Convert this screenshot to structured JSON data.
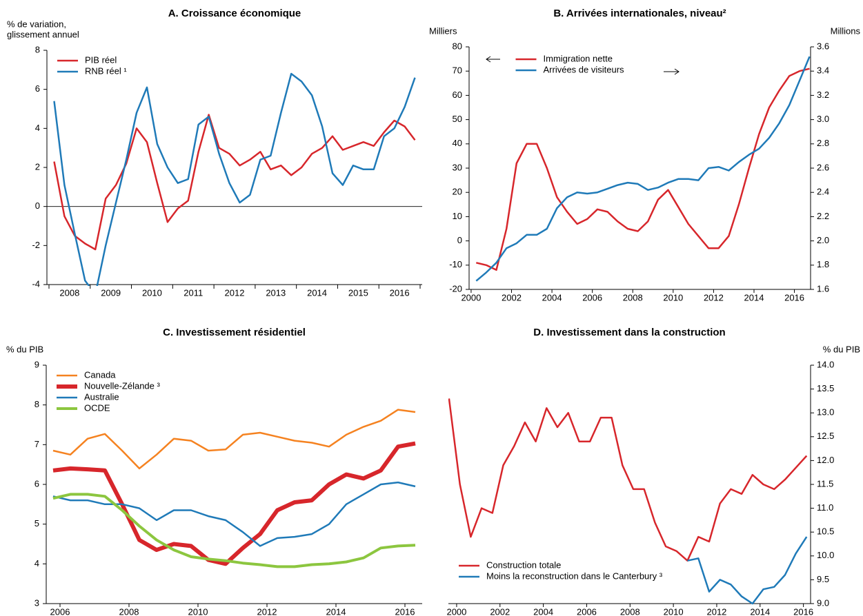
{
  "chart_data": [
    {
      "type": "line",
      "title": "A. Croissance économique",
      "y_label": [
        "% de variation,",
        "glissement annuel"
      ],
      "x": [
        2008.125,
        2008.375,
        2008.625,
        2008.875,
        2009.125,
        2009.375,
        2009.625,
        2009.875,
        2010.125,
        2010.375,
        2010.625,
        2010.875,
        2011.125,
        2011.375,
        2011.625,
        2011.875,
        2012.125,
        2012.375,
        2012.625,
        2012.875,
        2013.125,
        2013.375,
        2013.625,
        2013.875,
        2014.125,
        2014.375,
        2014.625,
        2014.875,
        2015.125,
        2015.375,
        2015.625,
        2015.875,
        2016.125,
        2016.375,
        2016.625,
        2016.875
      ],
      "xlim": [
        2007.95,
        2017.05
      ],
      "xticks": [
        {
          "value": 2008.5,
          "label": "2008"
        },
        {
          "value": 2009.5,
          "label": "2009"
        },
        {
          "value": 2010.5,
          "label": "2010"
        },
        {
          "value": 2011.5,
          "label": "2011"
        },
        {
          "value": 2012.5,
          "label": "2012"
        },
        {
          "value": 2013.5,
          "label": "2013"
        },
        {
          "value": 2014.5,
          "label": "2014"
        },
        {
          "value": 2015.5,
          "label": "2015"
        },
        {
          "value": 2016.5,
          "label": "2016"
        }
      ],
      "xtick_style": "between",
      "ylim": [
        -4,
        8
      ],
      "yticks": [
        -4,
        -2,
        0,
        2,
        4,
        6,
        8
      ],
      "zero_line": true,
      "legend": "upper left",
      "series": [
        {
          "name": "PIB réel",
          "color": "#d7262b",
          "values": [
            2.3,
            -0.5,
            -1.5,
            -1.9,
            -2.2,
            0.4,
            1.1,
            2.2,
            4.0,
            3.3,
            1.2,
            -0.8,
            -0.1,
            0.3,
            2.8,
            4.7,
            3.0,
            2.7,
            2.1,
            2.4,
            2.8,
            1.9,
            2.1,
            1.6,
            2.0,
            2.7,
            3.0,
            3.6,
            2.9,
            3.1,
            3.3,
            3.1,
            3.8,
            4.4,
            4.1,
            3.4
          ]
        },
        {
          "name": "RNB réel ¹",
          "color": "#1f7ab8",
          "values": [
            5.4,
            1.1,
            -1.4,
            -3.8,
            -4.5,
            -2.0,
            0.2,
            2.4,
            4.8,
            6.1,
            3.2,
            2.0,
            1.2,
            1.4,
            4.2,
            4.6,
            2.7,
            1.2,
            0.2,
            0.6,
            2.4,
            2.6,
            4.8,
            6.8,
            6.4,
            5.7,
            4.1,
            1.7,
            1.1,
            2.1,
            1.9,
            1.9,
            3.6,
            4.0,
            5.1,
            6.6
          ]
        }
      ]
    },
    {
      "type": "line",
      "title": "B. Arrivées internationales, niveau²",
      "y_label": [
        "Milliers"
      ],
      "y2_label": "Millions",
      "x": [
        2000.25,
        2000.75,
        2001.25,
        2001.75,
        2002.25,
        2002.75,
        2003.25,
        2003.75,
        2004.25,
        2004.75,
        2005.25,
        2005.75,
        2006.25,
        2006.75,
        2007.25,
        2007.75,
        2008.25,
        2008.75,
        2009.25,
        2009.75,
        2010.25,
        2010.75,
        2011.25,
        2011.75,
        2012.25,
        2012.75,
        2013.25,
        2013.75,
        2014.25,
        2014.75,
        2015.25,
        2015.75,
        2016.25,
        2016.75
      ],
      "xlim": [
        1999.9,
        2016.8
      ],
      "xticks": [
        2000,
        2002,
        2004,
        2006,
        2008,
        2010,
        2012,
        2014,
        2016
      ],
      "ylim": [
        -20,
        80
      ],
      "yticks": [
        -20,
        -10,
        0,
        10,
        20,
        30,
        40,
        50,
        60,
        70,
        80
      ],
      "y2lim": [
        1.6,
        3.6
      ],
      "y2ticks": [
        1.6,
        1.8,
        {
          "value": 2,
          "label": "2.0"
        },
        2.2,
        2.4,
        2.6,
        2.8,
        {
          "value": 3,
          "label": "3.0"
        },
        3.2,
        3.4,
        3.6
      ],
      "legend": "upper center",
      "series": [
        {
          "name": "Immigration nette",
          "color": "#d7262b",
          "values": [
            -9,
            -10,
            -12,
            5,
            32,
            40,
            40,
            30,
            18,
            12,
            7,
            9,
            13,
            12,
            8,
            5,
            4,
            8,
            17,
            21,
            14,
            7,
            2,
            -3,
            -3,
            2,
            15,
            30,
            44,
            55,
            62,
            68,
            70,
            71
          ]
        },
        {
          "name": "Arrivées de visiteurs",
          "color": "#1f7ab8",
          "axis": "y2",
          "values": [
            1.67,
            1.74,
            1.82,
            1.94,
            1.98,
            2.05,
            2.05,
            2.1,
            2.27,
            2.36,
            2.4,
            2.39,
            2.4,
            2.43,
            2.46,
            2.48,
            2.47,
            2.42,
            2.44,
            2.48,
            2.51,
            2.51,
            2.5,
            2.6,
            2.61,
            2.58,
            2.65,
            2.71,
            2.76,
            2.85,
            2.97,
            3.12,
            3.32,
            3.52
          ]
        }
      ]
    },
    {
      "type": "line",
      "title": "C. Investissement résidentiel",
      "y_label": [
        "% du PIB"
      ],
      "x": [
        2005.8,
        2006.3,
        2006.8,
        2007.3,
        2007.8,
        2008.3,
        2008.8,
        2009.3,
        2009.8,
        2010.3,
        2010.8,
        2011.3,
        2011.8,
        2012.3,
        2012.8,
        2013.3,
        2013.8,
        2014.3,
        2014.8,
        2015.3,
        2015.8,
        2016.3
      ],
      "xlim": [
        2005.6,
        2016.5
      ],
      "xticks": [
        2006,
        2008,
        2010,
        2012,
        2014,
        2016
      ],
      "ylim": [
        3,
        9
      ],
      "yticks": [
        3,
        4,
        5,
        6,
        7,
        8,
        9
      ],
      "legend": "upper left",
      "series": [
        {
          "name": "Canada",
          "color": "#f58220",
          "line_width": 2.5,
          "values": [
            6.85,
            6.75,
            7.15,
            7.27,
            6.85,
            6.4,
            6.75,
            7.15,
            7.1,
            6.85,
            6.88,
            7.25,
            7.3,
            7.2,
            7.1,
            7.05,
            6.95,
            7.25,
            7.45,
            7.6,
            7.88,
            7.82
          ]
        },
        {
          "name": "Nouvelle-Zélande ³",
          "color": "#d7262b",
          "line_width": 6,
          "values": [
            6.35,
            6.4,
            6.38,
            6.35,
            5.5,
            4.6,
            4.35,
            4.5,
            4.45,
            4.1,
            4.0,
            4.4,
            4.75,
            5.35,
            5.55,
            5.6,
            6.0,
            6.25,
            6.15,
            6.35,
            6.95,
            7.03
          ]
        },
        {
          "name": "Australie",
          "color": "#1f7ab8",
          "line_width": 2.5,
          "values": [
            5.7,
            5.6,
            5.6,
            5.5,
            5.5,
            5.4,
            5.1,
            5.35,
            5.35,
            5.2,
            5.1,
            4.8,
            4.45,
            4.65,
            4.68,
            4.75,
            5.0,
            5.5,
            5.75,
            6.0,
            6.05,
            5.95
          ]
        },
        {
          "name": "OCDE",
          "color": "#8cc63f",
          "line_width": 4,
          "values": [
            5.65,
            5.75,
            5.75,
            5.7,
            5.35,
            4.95,
            4.6,
            4.35,
            4.18,
            4.12,
            4.08,
            4.02,
            3.98,
            3.93,
            3.93,
            3.98,
            4.0,
            4.05,
            4.15,
            4.4,
            4.45,
            4.47
          ]
        }
      ]
    },
    {
      "type": "line",
      "title": "D. Investissement dans la construction",
      "y2_label": "% du PIB",
      "x": [
        1999.65,
        2000.15,
        2000.65,
        2001.15,
        2001.65,
        2002.15,
        2002.65,
        2003.15,
        2003.65,
        2004.15,
        2004.65,
        2005.15,
        2005.65,
        2006.15,
        2006.65,
        2007.15,
        2007.65,
        2008.15,
        2008.65,
        2009.15,
        2009.65,
        2010.15,
        2010.65,
        2011.15,
        2011.65,
        2012.15,
        2012.65,
        2013.15,
        2013.65,
        2014.15,
        2014.65,
        2015.15,
        2015.65,
        2016.15
      ],
      "xlim": [
        1999.62,
        2016.33
      ],
      "xticks": [
        2000,
        2002,
        2004,
        2006,
        2008,
        2010,
        2012,
        2014,
        2016
      ],
      "y2lim": [
        9,
        14
      ],
      "y2ticks": [
        {
          "value": 9,
          "label": "9.0"
        },
        9.5,
        {
          "value": 10,
          "label": "10.0"
        },
        10.5,
        {
          "value": 11,
          "label": "11.0"
        },
        11.5,
        {
          "value": 12,
          "label": "12.0"
        },
        12.5,
        {
          "value": 13,
          "label": "13.0"
        },
        13.5,
        {
          "value": 14,
          "label": "14.0"
        }
      ],
      "legend": "lower left",
      "series": [
        {
          "name": "Construction totale",
          "color": "#d7262b",
          "axis": "y2",
          "values": [
            13.3,
            11.5,
            10.4,
            11.0,
            10.9,
            11.9,
            12.3,
            12.8,
            12.4,
            13.1,
            12.7,
            13.0,
            12.4,
            12.4,
            12.9,
            12.9,
            11.9,
            11.4,
            11.4,
            10.7,
            10.2,
            10.1,
            9.9,
            10.4,
            10.3,
            11.1,
            11.4,
            11.3,
            11.7,
            11.5,
            11.4,
            11.6,
            11.85,
            12.1
          ]
        },
        {
          "name": "Moins la reconstruction dans le Canterbury ³",
          "color": "#1f7ab8",
          "axis": "y2",
          "values": [
            null,
            null,
            null,
            null,
            null,
            null,
            null,
            null,
            null,
            null,
            null,
            null,
            null,
            null,
            null,
            null,
            null,
            null,
            null,
            null,
            null,
            null,
            9.9,
            9.95,
            9.25,
            9.5,
            9.4,
            9.15,
            9.0,
            9.3,
            9.35,
            9.6,
            10.05,
            10.4
          ]
        }
      ]
    }
  ]
}
